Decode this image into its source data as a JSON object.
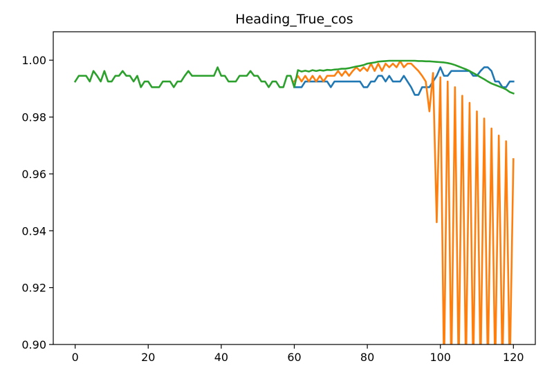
{
  "chart_data": {
    "type": "line",
    "title": "Heading_True_cos",
    "xlabel": "",
    "ylabel": "",
    "xlim": [
      -6,
      126
    ],
    "ylim": [
      0.9,
      1.01
    ],
    "grid": false,
    "legend": "none",
    "x_ticks": [
      0,
      20,
      40,
      60,
      80,
      100,
      120
    ],
    "x_tick_labels": [
      "0",
      "20",
      "40",
      "60",
      "80",
      "100",
      "120"
    ],
    "y_ticks": [
      0.9,
      0.92,
      0.94,
      0.96,
      0.98,
      1.0
    ],
    "y_tick_labels": [
      "0.90",
      "0.92",
      "0.94",
      "0.96",
      "0.98",
      "1.00"
    ],
    "series": [
      {
        "color": "#1f77b4",
        "x": [
          60,
          61,
          62,
          63,
          64,
          65,
          66,
          67,
          68,
          69,
          70,
          71,
          72,
          73,
          74,
          75,
          76,
          77,
          78,
          79,
          80,
          81,
          82,
          83,
          84,
          85,
          86,
          87,
          88,
          89,
          90,
          91,
          92,
          93,
          94,
          95,
          96,
          97,
          98,
          99,
          100,
          101,
          102,
          103,
          104,
          105,
          106,
          107,
          108,
          109,
          110,
          111,
          112,
          113,
          114,
          115,
          116,
          117,
          118,
          119,
          120
        ],
        "y": [
          0.9905,
          0.9905,
          0.9905,
          0.9925,
          0.9925,
          0.9925,
          0.9925,
          0.9925,
          0.9925,
          0.9925,
          0.9905,
          0.9925,
          0.9925,
          0.9925,
          0.9925,
          0.9925,
          0.9925,
          0.9925,
          0.9925,
          0.9905,
          0.9905,
          0.9925,
          0.9925,
          0.9945,
          0.9945,
          0.9925,
          0.9945,
          0.9925,
          0.9925,
          0.9925,
          0.9945,
          0.9925,
          0.9905,
          0.9878,
          0.9878,
          0.9905,
          0.9905,
          0.9905,
          0.9925,
          0.9945,
          0.9975,
          0.9945,
          0.9945,
          0.9962,
          0.9962,
          0.9962,
          0.9962,
          0.9962,
          0.9962,
          0.9945,
          0.9945,
          0.9962,
          0.9975,
          0.9975,
          0.9962,
          0.9925,
          0.9925,
          0.9905,
          0.9905,
          0.9925,
          0.9925
        ]
      },
      {
        "color": "#ff7f0e",
        "x": [
          60,
          61,
          62,
          63,
          64,
          65,
          66,
          67,
          68,
          69,
          70,
          71,
          72,
          73,
          74,
          75,
          76,
          77,
          78,
          79,
          80,
          81,
          82,
          83,
          84,
          85,
          86,
          87,
          88,
          89,
          90,
          91,
          92,
          93,
          94,
          95,
          96,
          97,
          98,
          99,
          100,
          101,
          102,
          103,
          104,
          105,
          106,
          107,
          108,
          109,
          110,
          111,
          112,
          113,
          114,
          115,
          116,
          117,
          118,
          119,
          120
        ],
        "y": [
          0.9925,
          0.9945,
          0.9925,
          0.9945,
          0.9925,
          0.9945,
          0.9925,
          0.9945,
          0.9925,
          0.9945,
          0.9945,
          0.9945,
          0.9962,
          0.9945,
          0.9962,
          0.9945,
          0.9962,
          0.9975,
          0.9962,
          0.9975,
          0.9962,
          0.9988,
          0.9962,
          0.9988,
          0.9962,
          0.9988,
          0.9975,
          0.9988,
          0.9975,
          0.9997,
          0.9975,
          0.9988,
          0.9988,
          0.9975,
          0.9962,
          0.9945,
          0.9925,
          0.982,
          0.9955,
          0.943,
          0.994,
          0.89,
          0.9925,
          0.89,
          0.9905,
          0.89,
          0.9875,
          0.89,
          0.985,
          0.89,
          0.982,
          0.89,
          0.9795,
          0.89,
          0.976,
          0.89,
          0.9735,
          0.89,
          0.9715,
          0.89,
          0.9652
        ]
      },
      {
        "color": "#2ca02c",
        "x": [
          0,
          1,
          2,
          3,
          4,
          5,
          6,
          7,
          8,
          9,
          10,
          11,
          12,
          13,
          14,
          15,
          16,
          17,
          18,
          19,
          20,
          21,
          22,
          23,
          24,
          25,
          26,
          27,
          28,
          29,
          30,
          31,
          32,
          33,
          34,
          35,
          36,
          37,
          38,
          39,
          40,
          41,
          42,
          43,
          44,
          45,
          46,
          47,
          48,
          49,
          50,
          51,
          52,
          53,
          54,
          55,
          56,
          57,
          58,
          59,
          60,
          61,
          62,
          63,
          64,
          65,
          66,
          67,
          68,
          69,
          70,
          71,
          72,
          73,
          74,
          75,
          76,
          77,
          78,
          79,
          80,
          81,
          82,
          83,
          84,
          85,
          86,
          87,
          88,
          89,
          90,
          91,
          92,
          93,
          94,
          95,
          96,
          97,
          98,
          99,
          100,
          101,
          102,
          103,
          104,
          105,
          106,
          107,
          108,
          109,
          110,
          111,
          112,
          113,
          114,
          115,
          116,
          117,
          118,
          119,
          120
        ],
        "y": [
          0.9925,
          0.9945,
          0.9945,
          0.9945,
          0.9925,
          0.9962,
          0.9945,
          0.9925,
          0.9962,
          0.9925,
          0.9925,
          0.9945,
          0.9945,
          0.9962,
          0.9945,
          0.9945,
          0.9925,
          0.9945,
          0.9905,
          0.9925,
          0.9925,
          0.9905,
          0.9905,
          0.9905,
          0.9925,
          0.9925,
          0.9925,
          0.9905,
          0.9925,
          0.9925,
          0.9945,
          0.9962,
          0.9945,
          0.9945,
          0.9945,
          0.9945,
          0.9945,
          0.9945,
          0.9945,
          0.9975,
          0.9945,
          0.9945,
          0.9925,
          0.9925,
          0.9925,
          0.9945,
          0.9945,
          0.9945,
          0.9962,
          0.9945,
          0.9945,
          0.9925,
          0.9925,
          0.9905,
          0.9925,
          0.9925,
          0.9905,
          0.9905,
          0.9945,
          0.9945,
          0.9905,
          0.9965,
          0.996,
          0.9963,
          0.996,
          0.9965,
          0.9962,
          0.9965,
          0.9963,
          0.9966,
          0.9965,
          0.9967,
          0.9968,
          0.997,
          0.997,
          0.9972,
          0.9975,
          0.9978,
          0.998,
          0.9983,
          0.9988,
          0.999,
          0.9992,
          0.9995,
          0.9996,
          0.9997,
          0.9998,
          0.9998,
          0.9998,
          0.9998,
          0.9998,
          0.9998,
          0.9998,
          0.9998,
          0.9997,
          0.9997,
          0.9996,
          0.9996,
          0.9995,
          0.9994,
          0.9993,
          0.9992,
          0.999,
          0.9987,
          0.9983,
          0.9978,
          0.9973,
          0.9968,
          0.9962,
          0.9955,
          0.9948,
          0.994,
          0.9933,
          0.9925,
          0.9918,
          0.9913,
          0.9908,
          0.9903,
          0.9897,
          0.9888,
          0.9883
        ]
      }
    ]
  }
}
